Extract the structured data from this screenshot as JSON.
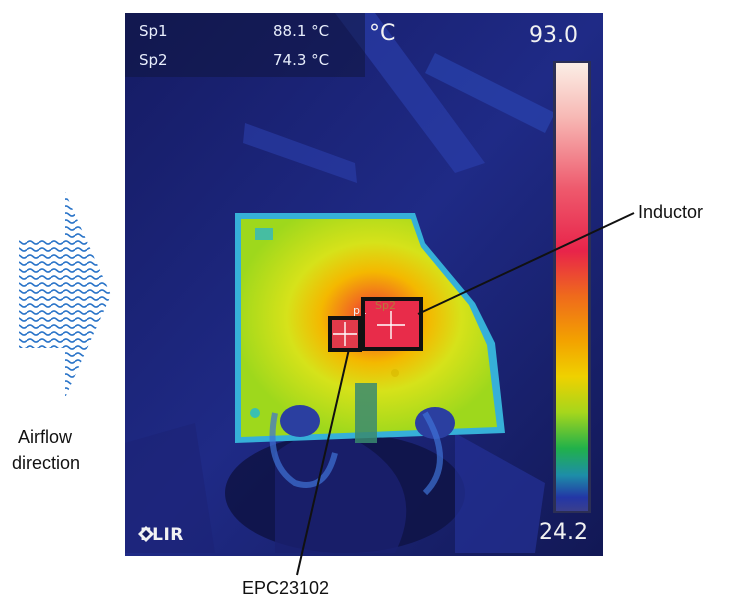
{
  "readouts": [
    {
      "label": "Sp1",
      "value": "88.1 °C"
    },
    {
      "label": "Sp2",
      "value": "74.3 °C"
    }
  ],
  "unit": "°C",
  "scale": {
    "max": "93.0",
    "min": "24.2"
  },
  "brand": "FLIR",
  "spot_tags": {
    "sp1": "p1",
    "sp2": "Sp2"
  },
  "annotations": {
    "inductor": "Inductor",
    "chip": "EPC23102",
    "airflow_line1": "Airflow",
    "airflow_line2": "direction"
  },
  "colors": {
    "cold": "#1a1f6e",
    "hot": "#e8244a",
    "board": "#9ed81c",
    "warm": "#f0c400",
    "marker_box": "#111111"
  },
  "icons": [
    "airflow-arrow-icon",
    "flir-logo-icon",
    "crosshair-icon"
  ]
}
